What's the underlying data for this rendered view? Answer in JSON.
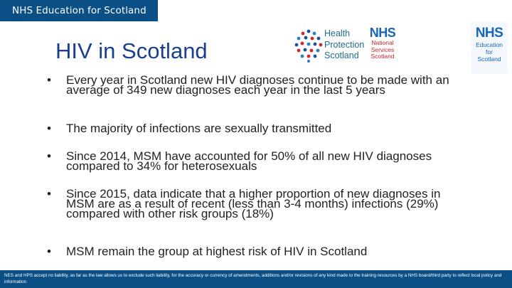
{
  "header": {
    "org_label": "NHS Education for Scotland"
  },
  "slide": {
    "title": "HIV in Scotland"
  },
  "logos": {
    "hps": {
      "lines": [
        "Health",
        "Protection",
        "Scotland"
      ],
      "dot_colors": [
        "#1f4e9c",
        "#d6252c",
        "#2f7ec2"
      ]
    },
    "nss": {
      "nhs": "NHS",
      "lines": [
        "National",
        "Services",
        "Scotland"
      ]
    },
    "nes": {
      "nhs": "NHS",
      "lines": [
        "Education",
        "for",
        "Scotland"
      ]
    }
  },
  "bullets": [
    "Every year in Scotland new HIV diagnoses continue to be made with an average of 349 new diagnoses each year in the last 5 years",
    "The majority of infections are sexually transmitted",
    "Since 2014, MSM have accounted for 50% of all new HIV diagnoses compared to 34% for heterosexuals",
    "Since 2015, data indicate that a higher proportion of new diagnoses in MSM are as a result of recent (less than 3-4 months) infections (29%) compared with other risk groups (18%)",
    "MSM remain the group at highest risk of HIV in Scotland"
  ],
  "bullet_symbol": "•",
  "footer": {
    "disclaimer": "NES and HPS accept no liability, as far as the law allows us to exclude such liability, for the accuracy or currency of amendments, additions and/or revisions of any kind made to the training resources by a NHS board/third party to reflect local policy and information"
  },
  "colors": {
    "brand_blue": "#0a4f86",
    "title_blue": "#1a3f8f",
    "nhs_blue": "#1565b8",
    "nss_red": "#c1272d"
  }
}
